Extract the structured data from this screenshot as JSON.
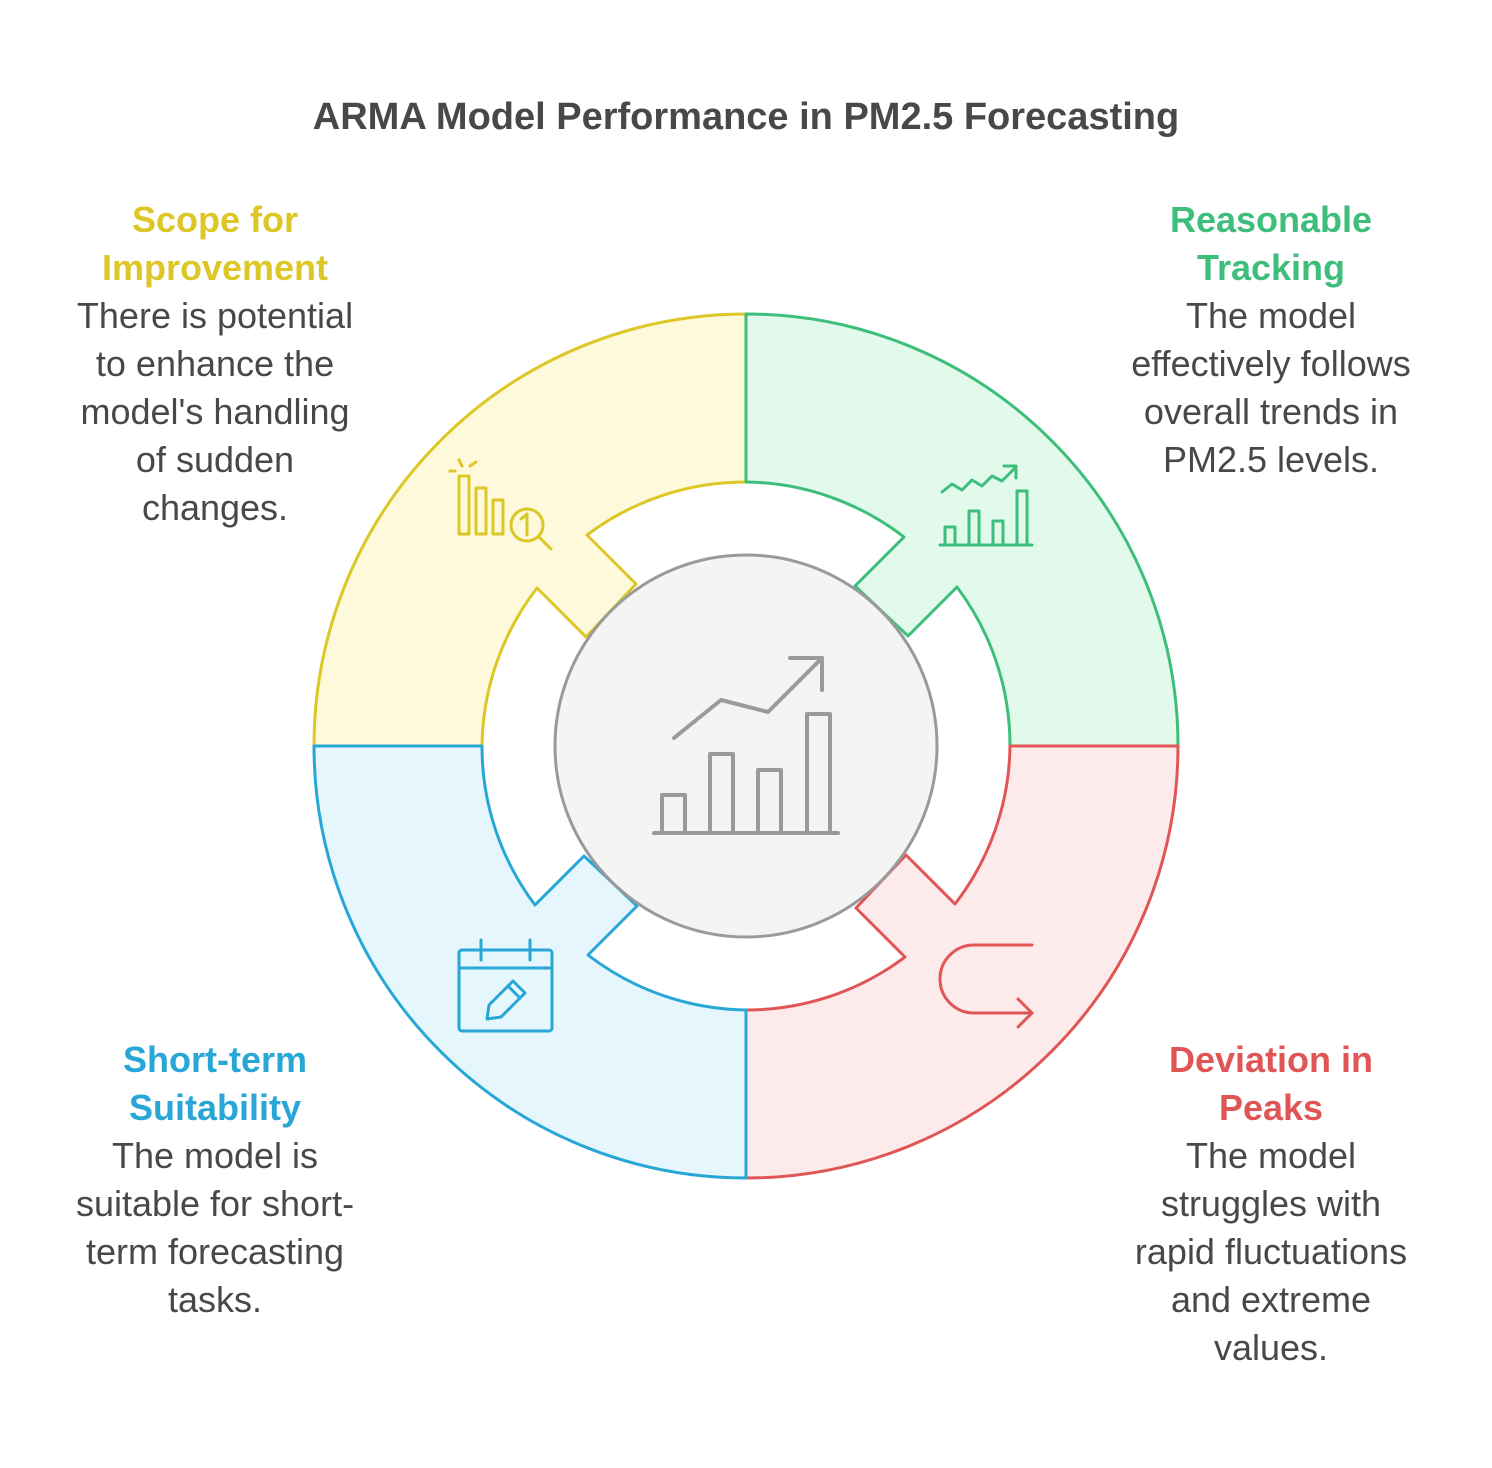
{
  "title": "ARMA Model Performance in PM2.5 Forecasting",
  "center": {
    "icon": "bar-chart-growth-icon"
  },
  "sections": {
    "scope": {
      "heading_line1": "Scope for",
      "heading_line2": "Improvement",
      "description_lines": [
        "There is potential",
        "to enhance the",
        "model's handling",
        "of sudden",
        "changes."
      ],
      "icon": "bar-chart-magnifier-icon",
      "color": "#dcc726",
      "fill": "#fdf9da"
    },
    "tracking": {
      "heading_line1": "Reasonable",
      "heading_line2": "Tracking",
      "description_lines": [
        "The model",
        "effectively follows",
        "overall trends in",
        "PM2.5 levels."
      ],
      "icon": "trend-bar-chart-icon",
      "color": "#3dbe7a",
      "fill": "#e2faec"
    },
    "suitability": {
      "heading_line1": "Short-term",
      "heading_line2": "Suitability",
      "description_lines": [
        "The model is",
        "suitable for short-",
        "term forecasting",
        "tasks."
      ],
      "icon": "calendar-edit-icon",
      "color": "#28a7d7",
      "fill": "#e5f7fd"
    },
    "deviation": {
      "heading_line1": "Deviation in",
      "heading_line2": "Peaks",
      "description_lines": [
        "The model",
        "struggles with",
        "rapid fluctuations",
        "and extreme",
        "values."
      ],
      "icon": "u-turn-arrow-icon",
      "color": "#e05656",
      "fill": "#fdeaea"
    }
  }
}
